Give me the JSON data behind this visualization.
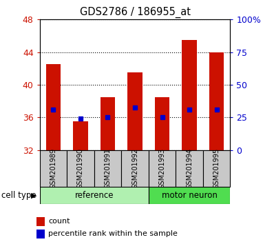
{
  "title": "GDS2786 / 186955_at",
  "categories": [
    "GSM201989",
    "GSM201990",
    "GSM201991",
    "GSM201992",
    "GSM201993",
    "GSM201994",
    "GSM201995"
  ],
  "bar_values": [
    42.5,
    35.5,
    38.5,
    41.5,
    38.5,
    45.5,
    44.0
  ],
  "bar_bottom": 32.0,
  "percentile_values": [
    37.0,
    35.9,
    36.0,
    37.2,
    36.0,
    37.0,
    37.0
  ],
  "groups": [
    {
      "label": "reference",
      "indices": [
        0,
        1,
        2,
        3
      ]
    },
    {
      "label": "motor neuron",
      "indices": [
        4,
        5,
        6
      ]
    }
  ],
  "ylim_left": [
    32,
    48
  ],
  "ylim_right": [
    0,
    100
  ],
  "yticks_left": [
    32,
    36,
    40,
    44,
    48
  ],
  "yticks_right": [
    0,
    25,
    50,
    75,
    100
  ],
  "ytick_labels_right": [
    "0",
    "25",
    "50",
    "75",
    "100%"
  ],
  "bar_color": "#cc1100",
  "percentile_color": "#0000cc",
  "bar_width": 0.55,
  "left_tick_color": "#cc1100",
  "right_tick_color": "#0000cc",
  "cell_type_label": "cell type",
  "legend_count_label": "count",
  "legend_percentile_label": "percentile rank within the sample",
  "background_xlabel": "#c8c8c8",
  "background_group_ref": "#b0f0b0",
  "background_group_motor": "#50dd50"
}
